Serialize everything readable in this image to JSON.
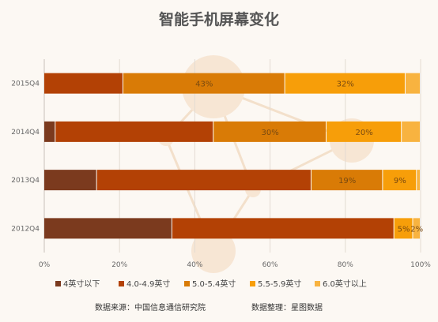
{
  "chart_data": {
    "type": "bar",
    "orientation": "horizontal",
    "stacked": true,
    "title": "智能手机屏幕变化",
    "categories": [
      "2015Q4",
      "2014Q4",
      "2013Q4",
      "2012Q4"
    ],
    "series": [
      {
        "name": "4英寸以下",
        "color": "#7b3a1e",
        "values": [
          0,
          3,
          14,
          34
        ]
      },
      {
        "name": "4.0-4.9英寸",
        "color": "#b34105",
        "values": [
          21,
          42,
          57,
          59
        ]
      },
      {
        "name": "5.0-5.4英寸",
        "color": "#d97b06",
        "values": [
          43,
          30,
          19,
          0
        ]
      },
      {
        "name": "5.5-5.9英寸",
        "color": "#f79e09",
        "values": [
          32,
          20,
          9,
          5
        ]
      },
      {
        "name": "6.0英寸以上",
        "color": "#f8b340",
        "values": [
          4,
          5,
          1,
          2
        ]
      }
    ],
    "data_labels": [
      {
        "category": "2015Q4",
        "series": "5.0-5.4英寸",
        "text": "43%"
      },
      {
        "category": "2015Q4",
        "series": "5.5-5.9英寸",
        "text": "32%"
      },
      {
        "category": "2014Q4",
        "series": "5.0-5.4英寸",
        "text": "30%"
      },
      {
        "category": "2014Q4",
        "series": "5.5-5.9英寸",
        "text": "20%"
      },
      {
        "category": "2013Q4",
        "series": "5.0-5.4英寸",
        "text": "19%"
      },
      {
        "category": "2013Q4",
        "series": "5.5-5.9英寸",
        "text": "9%"
      },
      {
        "category": "2012Q4",
        "series": "5.5-5.9英寸",
        "text": "5%"
      },
      {
        "category": "2012Q4",
        "series": "6.0英寸以上",
        "text": "2%"
      }
    ],
    "x_ticks": [
      "0%",
      "20%",
      "40%",
      "60%",
      "80%",
      "100%"
    ],
    "xlim": [
      0,
      100
    ],
    "grid": true,
    "legend_position": "bottom"
  },
  "footer": {
    "source": "数据来源：中国信息通信研究院",
    "compiled": "数据整理：星图数据"
  }
}
